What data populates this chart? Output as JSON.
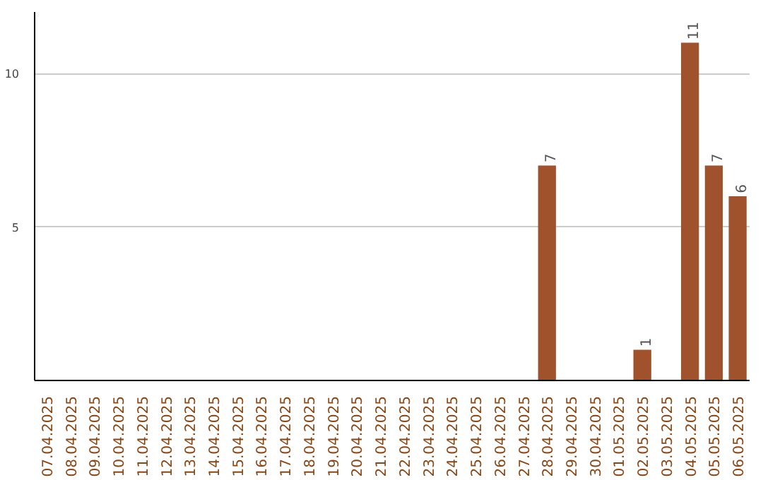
{
  "chart_data": {
    "type": "bar",
    "categories": [
      "07.04.2025",
      "08.04.2025",
      "09.04.2025",
      "10.04.2025",
      "11.04.2025",
      "12.04.2025",
      "13.04.2025",
      "14.04.2025",
      "15.04.2025",
      "16.04.2025",
      "17.04.2025",
      "18.04.2025",
      "19.04.2025",
      "20.04.2025",
      "21.04.2025",
      "22.04.2025",
      "23.04.2025",
      "24.04.2025",
      "25.04.2025",
      "26.04.2025",
      "27.04.2025",
      "28.04.2025",
      "29.04.2025",
      "30.04.2025",
      "01.05.2025",
      "02.05.2025",
      "03.05.2025",
      "04.05.2025",
      "05.05.2025",
      "06.05.2025"
    ],
    "values": [
      0,
      0,
      0,
      0,
      0,
      0,
      0,
      0,
      0,
      0,
      0,
      0,
      0,
      0,
      0,
      0,
      0,
      0,
      0,
      0,
      0,
      7,
      0,
      0,
      0,
      1,
      0,
      11,
      7,
      6
    ],
    "value_labels": [
      null,
      null,
      null,
      null,
      null,
      null,
      null,
      null,
      null,
      null,
      null,
      null,
      null,
      null,
      null,
      null,
      null,
      null,
      null,
      null,
      null,
      "7",
      null,
      null,
      null,
      "1",
      null,
      "11",
      "7",
      "6"
    ],
    "color": "#a0522d",
    "ylim": [
      0,
      12
    ],
    "yticks": [
      5,
      10
    ],
    "grid": "y"
  }
}
